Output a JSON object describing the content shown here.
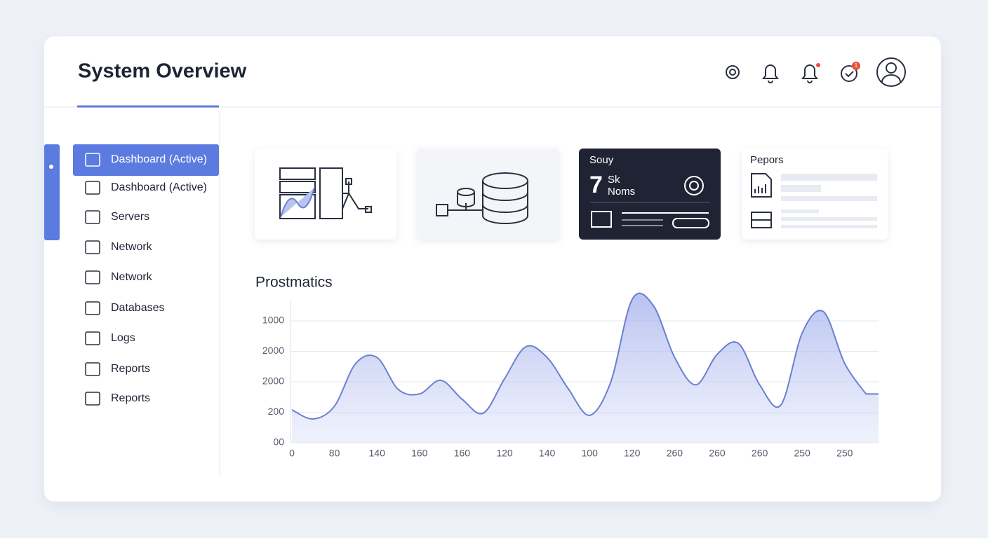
{
  "header": {
    "title": "System Overview",
    "badge": "1"
  },
  "sidebar": {
    "items": [
      "Dashboard (Active)",
      "Dashboard (Active)",
      "Servers",
      "Network",
      "Network",
      "Databases",
      "Logs",
      "Reports",
      "Reports"
    ]
  },
  "cards": {
    "dark": {
      "title": "Souy",
      "number": "7",
      "line1": "Sk",
      "line2": "Noms"
    },
    "reports": {
      "title": "Pepors"
    }
  },
  "chart_data": {
    "type": "area",
    "title": "Prostmatics",
    "color": "#6b7fd0",
    "categories": [
      "0",
      null,
      "80",
      null,
      "140",
      null,
      "160",
      null,
      "160",
      null,
      "120",
      null,
      "140",
      null,
      "100",
      null,
      "120",
      null,
      "260",
      null,
      "260",
      null,
      "260",
      null,
      "250",
      null,
      "250",
      null
    ],
    "values": [
      1.08,
      0.78,
      1.2,
      2.6,
      2.8,
      1.75,
      1.6,
      2.05,
      1.43,
      0.97,
      2.1,
      3.15,
      2.8,
      1.77,
      0.9,
      2.0,
      4.7,
      4.5,
      2.8,
      1.9,
      2.9,
      3.26,
      1.9,
      1.24,
      3.6,
      4.3,
      2.6,
      1.6
    ],
    "ylim": [
      0,
      5
    ],
    "yticks": [
      {
        "value": 0,
        "label": "00"
      },
      {
        "value": 1,
        "label": "200"
      },
      {
        "value": 2,
        "label": "2000"
      },
      {
        "value": 3,
        "label": "2000"
      },
      {
        "value": 4,
        "label": "1000"
      }
    ],
    "grid": true
  }
}
